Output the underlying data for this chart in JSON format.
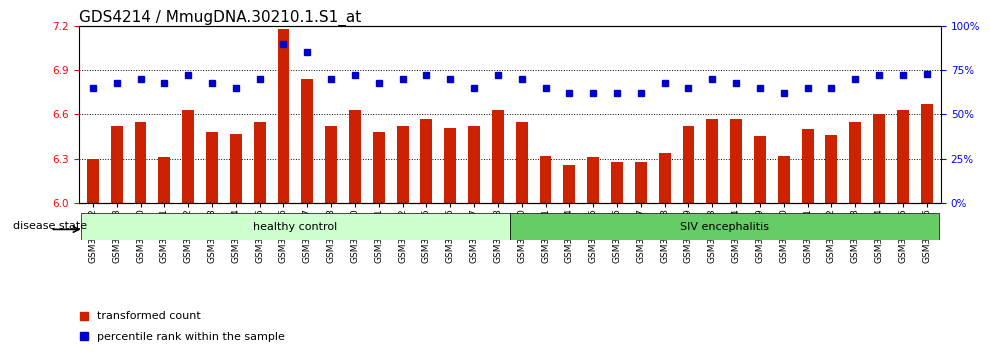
{
  "title": "GDS4214 / MmugDNA.30210.1.S1_at",
  "categories": [
    "GSM347802",
    "GSM347803",
    "GSM347810",
    "GSM347811",
    "GSM347812",
    "GSM347813",
    "GSM347814",
    "GSM347815",
    "GSM347816",
    "GSM347817",
    "GSM347818",
    "GSM347820",
    "GSM347821",
    "GSM347822",
    "GSM347825",
    "GSM347826",
    "GSM347827",
    "GSM347828",
    "GSM347800",
    "GSM347801",
    "GSM347804",
    "GSM347805",
    "GSM347806",
    "GSM347807",
    "GSM347808",
    "GSM347809",
    "GSM347823",
    "GSM347824",
    "GSM347829",
    "GSM347830",
    "GSM347831",
    "GSM347832",
    "GSM347833",
    "GSM347834",
    "GSM347835",
    "GSM347836"
  ],
  "bar_values": [
    6.3,
    6.52,
    6.55,
    6.31,
    6.63,
    6.48,
    6.47,
    6.55,
    7.18,
    6.84,
    6.52,
    6.63,
    6.48,
    6.52,
    6.57,
    6.51,
    6.52,
    6.63,
    6.55,
    6.32,
    6.26,
    6.31,
    6.28,
    6.28,
    6.34,
    6.52,
    6.57,
    6.57,
    6.45,
    6.32,
    6.5,
    6.46,
    6.55,
    6.6,
    6.63,
    6.67
  ],
  "percentile_values": [
    65,
    68,
    70,
    68,
    72,
    68,
    65,
    70,
    90,
    85,
    70,
    72,
    68,
    70,
    72,
    70,
    65,
    72,
    70,
    65,
    62,
    62,
    62,
    62,
    68,
    65,
    70,
    68,
    65,
    62,
    65,
    65,
    70,
    72,
    72,
    73
  ],
  "bar_color": "#cc2200",
  "percentile_color": "#0000cc",
  "ylim_left": [
    6.0,
    7.2
  ],
  "ylim_right": [
    0,
    100
  ],
  "yticks_left": [
    6.0,
    6.3,
    6.6,
    6.9,
    7.2
  ],
  "yticks_right": [
    0,
    25,
    50,
    75,
    100
  ],
  "ytick_labels_right": [
    "0%",
    "25%",
    "50%",
    "75%",
    "100%"
  ],
  "group1_label": "healthy control",
  "group2_label": "SIV encephalitis",
  "group1_count": 18,
  "group2_count": 18,
  "legend_bar_label": "transformed count",
  "legend_pct_label": "percentile rank within the sample",
  "disease_state_label": "disease state",
  "group1_color": "#ccffcc",
  "group2_color": "#66cc66",
  "title_fontsize": 11,
  "tick_fontsize": 7.5,
  "dotted_gridlines": [
    6.3,
    6.6,
    6.9
  ]
}
